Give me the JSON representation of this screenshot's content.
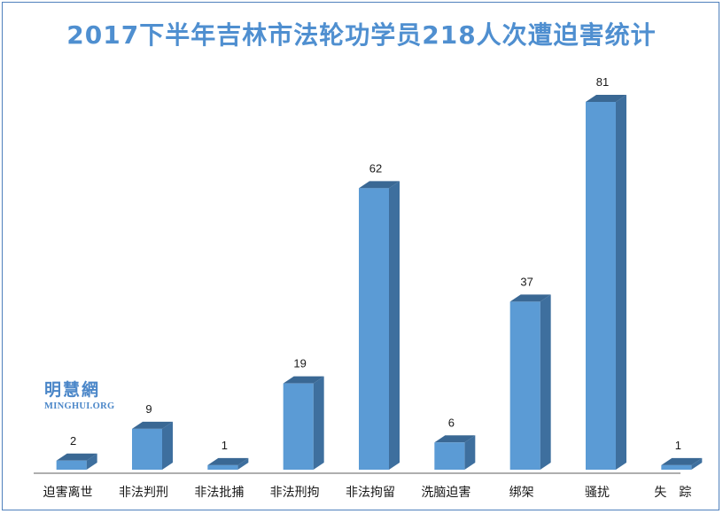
{
  "colors": {
    "title": "#4f8fd0",
    "bar_front": "#5b9bd5",
    "bar_side": "#3e6f9e",
    "bar_top": "#3a6894",
    "axis": "#7f7f7f",
    "label_text": "#1a1a1a",
    "watermark": "#4a86c8",
    "border": "#4f81bd"
  },
  "watermark": {
    "cn": "明慧網",
    "en": "MINGHUI.ORG"
  },
  "chart_data": {
    "type": "bar",
    "title": "2017下半年吉林市法轮功学员218人次遭迫害统计",
    "xlabel": "",
    "ylabel": "",
    "categories": [
      "迫害离世",
      "非法判刑",
      "非法批捕",
      "非法刑拘",
      "非法拘留",
      "洗脑迫害",
      "绑架",
      "骚扰",
      "失　踪"
    ],
    "values": [
      2,
      9,
      1,
      19,
      62,
      6,
      37,
      81,
      1
    ],
    "ylim": [
      0,
      81
    ],
    "grid": false,
    "legend": "none",
    "three_d": true
  }
}
